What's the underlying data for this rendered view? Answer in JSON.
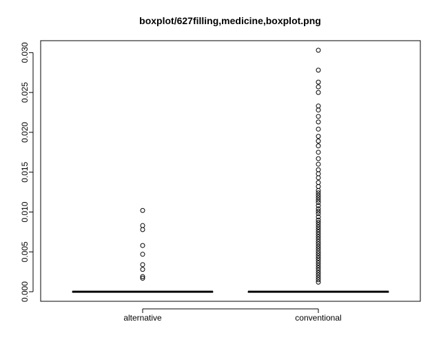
{
  "chart_data": {
    "type": "boxplot",
    "title": "boxplot/627filling,medicine,boxplot.png",
    "xlabel": "",
    "ylabel": "",
    "ylim": [
      -0.0012,
      0.0315
    ],
    "yticks": [
      0.0,
      0.005,
      0.01,
      0.015,
      0.02,
      0.025,
      0.03
    ],
    "ytick_labels": [
      "0.000",
      "0.005",
      "0.010",
      "0.015",
      "0.020",
      "0.025",
      "0.030"
    ],
    "categories": [
      "alternative",
      "conventional"
    ],
    "grid": false,
    "series": [
      {
        "category": "alternative",
        "box": {
          "min": 0,
          "q1": 0,
          "median": 0,
          "q3": 0,
          "max": 0
        },
        "outliers": [
          0.0102,
          0.0083,
          0.0078,
          0.0058,
          0.0047,
          0.0034,
          0.0028,
          0.0019,
          0.0017
        ]
      },
      {
        "category": "conventional",
        "box": {
          "min": 0,
          "q1": 0,
          "median": 0,
          "q3": 0,
          "max": 0
        },
        "outliers": [
          0.0303,
          0.0278,
          0.0263,
          0.0257,
          0.025,
          0.0233,
          0.0228,
          0.022,
          0.0213,
          0.0204,
          0.0195,
          0.0189,
          0.0183,
          0.0175,
          0.0167,
          0.016,
          0.0153,
          0.0148,
          0.0143,
          0.0137,
          0.0132,
          0.0127,
          0.0124,
          0.0121,
          0.0118,
          0.0115,
          0.0112,
          0.0108,
          0.0104,
          0.0101,
          0.0098,
          0.0094,
          0.009,
          0.0087,
          0.0084,
          0.0081,
          0.0078,
          0.0075,
          0.0072,
          0.0069,
          0.0066,
          0.0063,
          0.006,
          0.0057,
          0.0054,
          0.0051,
          0.0048,
          0.0045,
          0.0042,
          0.0039,
          0.0036,
          0.0033,
          0.003,
          0.0027,
          0.0024,
          0.0021,
          0.0018,
          0.0015,
          0.0012
        ]
      }
    ]
  }
}
